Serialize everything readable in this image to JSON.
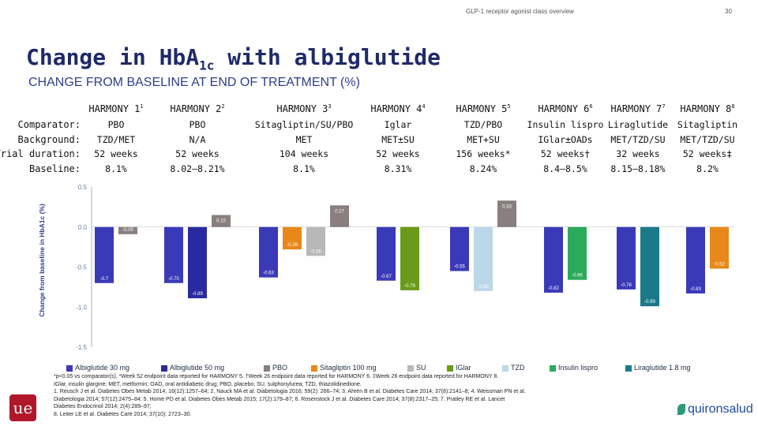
{
  "header": {
    "section": "GLP-1 receptor agonist class overview",
    "page": "30"
  },
  "title_main": "Change in HbA",
  "title_sub": "1c",
  "title_rest": " with albiglutide",
  "subtitle": "CHANGE FROM BASELINE AT END OF TREATMENT (%)",
  "row_labels": {
    "comparator": "Comparator:",
    "background": "Background:",
    "duration": "Trial duration:",
    "baseline": "Baseline:"
  },
  "trials": [
    {
      "name": "HARMONY 1",
      "ref": "1",
      "comparator": "PBO",
      "background": "TZD/MET",
      "duration": "52 weeks",
      "baseline": "8.1%"
    },
    {
      "name": "HARMONY 2",
      "ref": "2",
      "comparator": "PBO",
      "background": "N/A",
      "duration": "52 weeks",
      "baseline": "8.02–8.21%"
    },
    {
      "name": "HARMONY 3",
      "ref": "3",
      "comparator": "Sitagliptin/SU/PBO",
      "background": "MET",
      "duration": "104 weeks",
      "baseline": "8.1%"
    },
    {
      "name": "HARMONY 4",
      "ref": "4",
      "comparator": "Iglar",
      "background": "MET±SU",
      "duration": "52 weeks",
      "baseline": "8.31%"
    },
    {
      "name": "HARMONY 5",
      "ref": "5",
      "comparator": "TZD/PBO",
      "background": "MET+SU",
      "duration": "156 weeks*",
      "baseline": "8.24%"
    },
    {
      "name": "HARMONY 6",
      "ref": "6",
      "comparator": "Insulin lispro",
      "background": "IGlar±OADs",
      "duration": "52 weeks†",
      "baseline": "8.4–8.5%"
    },
    {
      "name": "HARMONY 7",
      "ref": "7",
      "comparator": "Liraglutide",
      "background": "MET/TZD/SU",
      "duration": "32 weeks",
      "baseline": "8.15–8.18%"
    },
    {
      "name": "HARMONY 8",
      "ref": "8",
      "comparator": "Sitagliptin",
      "background": "MET/TZD/SU",
      "duration": "52 weeks‡",
      "baseline": "8.2%"
    }
  ],
  "chart_data": {
    "type": "bar",
    "ylabel": "Change from baseline in HbA1c (%)",
    "ylim": [
      -1.5,
      0.5
    ],
    "yticks": [
      "0.5",
      "0.0",
      "-0.5",
      "-1.0",
      "-1.5"
    ],
    "ytick_values": [
      0.5,
      0.0,
      -0.5,
      -1.0,
      -1.5
    ],
    "legend_position": "bottom",
    "series": [
      {
        "name": "Albiglutide 30 mg",
        "color": "#3a3ab8"
      },
      {
        "name": "Albiglutide 50 mg",
        "color": "#2a2aa0"
      },
      {
        "name": "PBO",
        "color": "#8a7f7f"
      },
      {
        "name": "Sitagliptin 100 mg",
        "color": "#e8881a"
      },
      {
        "name": "SU",
        "color": "#b8b8b8"
      },
      {
        "name": "IGlar",
        "color": "#6a9a1a"
      },
      {
        "name": "TZD",
        "color": "#bcd8e8"
      },
      {
        "name": "Insulin lispro",
        "color": "#2aaa5a"
      },
      {
        "name": "Liraglutide 1.8 mg",
        "color": "#1a7a8a"
      }
    ],
    "bars": [
      {
        "trial": 0,
        "series": "Albiglutide 30 mg",
        "value": -0.7,
        "label": "-0.7"
      },
      {
        "trial": 0,
        "series": "PBO",
        "value": -0.09,
        "label": "-0.09"
      },
      {
        "trial": 1,
        "series": "Albiglutide 30 mg",
        "value": -0.7,
        "label": "-0.70"
      },
      {
        "trial": 1,
        "series": "Albiglutide 50 mg",
        "value": -0.89,
        "label": "-0.89"
      },
      {
        "trial": 1,
        "series": "PBO",
        "value": 0.15,
        "label": "0.15"
      },
      {
        "trial": 2,
        "series": "Albiglutide 30 mg",
        "value": -0.63,
        "label": "-0.63"
      },
      {
        "trial": 2,
        "series": "Sitagliptin 100 mg",
        "value": -0.28,
        "label": "-0.28"
      },
      {
        "trial": 2,
        "series": "SU",
        "value": -0.36,
        "label": "-0.36"
      },
      {
        "trial": 2,
        "series": "PBO",
        "value": 0.27,
        "label": "0.27"
      },
      {
        "trial": 3,
        "series": "Albiglutide 30 mg",
        "value": -0.67,
        "label": "-0.67"
      },
      {
        "trial": 3,
        "series": "IGlar",
        "value": -0.79,
        "label": "-0.79"
      },
      {
        "trial": 4,
        "series": "Albiglutide 30 mg",
        "value": -0.55,
        "label": "-0.55"
      },
      {
        "trial": 4,
        "series": "TZD",
        "value": -0.8,
        "label": "-0.80"
      },
      {
        "trial": 4,
        "series": "PBO",
        "value": 0.33,
        "label": "0.33"
      },
      {
        "trial": 5,
        "series": "Albiglutide 30 mg",
        "value": -0.82,
        "label": "-0.82"
      },
      {
        "trial": 5,
        "series": "Insulin lispro",
        "value": -0.66,
        "label": "-0.66"
      },
      {
        "trial": 6,
        "series": "Albiglutide 30 mg",
        "value": -0.78,
        "label": "-0.78"
      },
      {
        "trial": 6,
        "series": "Liraglutide 1.8 mg",
        "value": -0.99,
        "label": "-0.99"
      },
      {
        "trial": 7,
        "series": "Albiglutide 30 mg",
        "value": -0.83,
        "label": "-0.83"
      },
      {
        "trial": 7,
        "series": "Sitagliptin 100 mg",
        "value": -0.52,
        "label": "-0.52"
      }
    ]
  },
  "footnotes": [
    "*p<0.05 vs comparator(s). *Week 52 endpoint data reported for HARMONY 5. †Week 26 endpoint data reported for HARMONY 6. ‡Week 26 endpoint data reported for HARMONY 8.",
    "IGlar, insulin glargine; MET, metformin; OAD, oral antidiabetic drug; PBO, placebo; SU, sulphonylurea; TZD, thiazolidinedione.",
    "1. Reusch J et al. Diabetes Obes Metab 2014; 16(12):1257–64; 2. Nauck MA et al. Diabetologia 2016; 59(2): 266–74; 3. Ahrén B et al. Diabetes Care 2014; 37(8):2141–8; 4. Weissman PN et al.",
    "Diabetologia 2014; 57(12):2475–84; 5. Home PD et al. Diabetes Obes Metab 2015; 17(2):179–87; 6. Rosenstock J et al. Diabetes Care 2014; 37(8):2317–25; 7. Pratley RE et al. Lancet",
    "Diabetes Endocrinol 2014; 2(4):289–97;",
    "8. Leiter LE et al. Diabetes Care 2014; 37(10): 2723–30."
  ],
  "brand": {
    "left_logo_text": "ue",
    "right_logo_text": "quironsalud"
  }
}
